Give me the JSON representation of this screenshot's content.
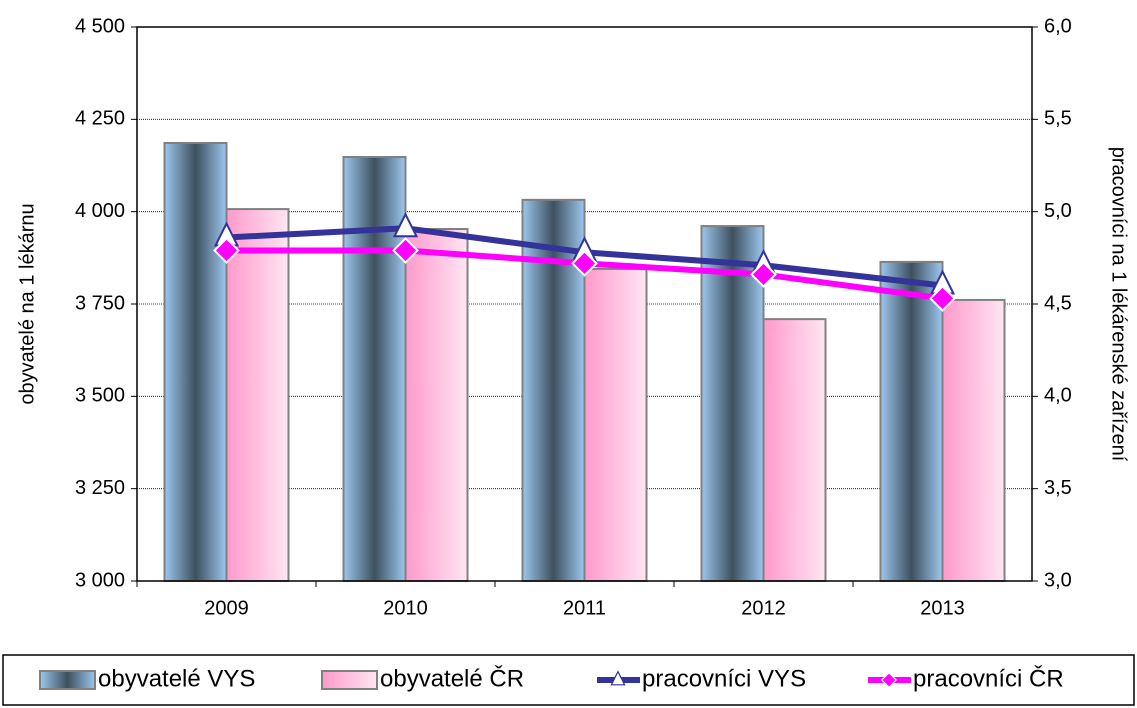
{
  "chart_data": {
    "type": "bar_line",
    "categories": [
      "2009",
      "2010",
      "2011",
      "2012",
      "2013"
    ],
    "ylabel": "obyvatelé na 1 lékárnu",
    "y2label": "pracovníci na 1 lékárenské zařízení",
    "ylim": [
      3000,
      4500
    ],
    "yticks": [
      {
        "value": 3000,
        "label": "3 000"
      },
      {
        "value": 3250,
        "label": "3 250"
      },
      {
        "value": 3500,
        "label": "3 500"
      },
      {
        "value": 3750,
        "label": "3 750"
      },
      {
        "value": 4000,
        "label": "4 000"
      },
      {
        "value": 4250,
        "label": "4 250"
      },
      {
        "value": 4500,
        "label": "4 500"
      }
    ],
    "y2lim": [
      3,
      6
    ],
    "y2ticks": [
      {
        "value": 3,
        "label": "3,0"
      },
      {
        "value": 3.5,
        "label": "3,5"
      },
      {
        "value": 4,
        "label": "4,0"
      },
      {
        "value": 4.5,
        "label": "4,5"
      },
      {
        "value": 5,
        "label": "5,0"
      },
      {
        "value": 5.5,
        "label": "5,5"
      },
      {
        "value": 6,
        "label": "6,0"
      }
    ],
    "grid": true,
    "legend": "bottom",
    "series": [
      {
        "name": "obyvatelé VYS",
        "kind": "bar",
        "color": "#9cc7ee",
        "values": [
          4186,
          4148,
          4032,
          3961,
          3864
        ]
      },
      {
        "name": "obyvatelé ČR",
        "kind": "bar",
        "color": "#ff99cc",
        "values": [
          4007,
          3953,
          3845,
          3709,
          3761
        ]
      },
      {
        "name": "pracovníci VYS",
        "kind": "line",
        "axis": "y2",
        "marker": "triangle",
        "color": "#333399",
        "values": [
          4.86,
          4.91,
          4.78,
          4.71,
          4.6
        ]
      },
      {
        "name": "pracovníci ČR",
        "kind": "line",
        "axis": "y2",
        "marker": "diamond",
        "color": "#ff00ff",
        "values": [
          4.79,
          4.79,
          4.72,
          4.66,
          4.53
        ]
      }
    ]
  }
}
